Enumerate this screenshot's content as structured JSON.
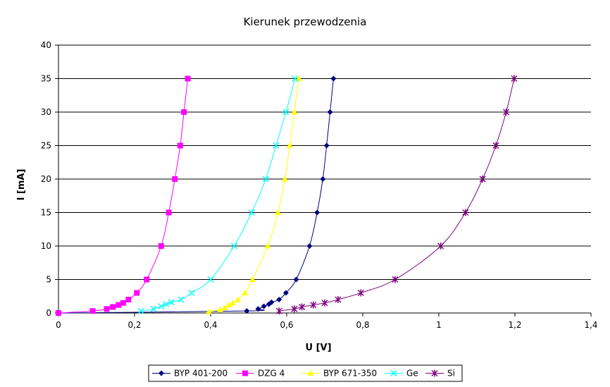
{
  "chart_data": {
    "type": "scatter",
    "title": "Kierunek przewodzenia",
    "xlabel": "U [V]",
    "ylabel": "I [mA]",
    "xlim": [
      0,
      1.4
    ],
    "ylim": [
      0,
      40
    ],
    "xticks": [
      0,
      0.2,
      0.4,
      0.6,
      0.8,
      1,
      1.2,
      1.4
    ],
    "xtick_labels": [
      "0",
      "0,2",
      "0,4",
      "0,6",
      "0,8",
      "1",
      "1,2",
      "1,4"
    ],
    "yticks": [
      0,
      5,
      10,
      15,
      20,
      25,
      30,
      35,
      40
    ],
    "ytick_labels": [
      "0",
      "5",
      "10",
      "15",
      "20",
      "25",
      "30",
      "35",
      "40"
    ],
    "grid": "horizontal",
    "legend_position": "bottom",
    "series": [
      {
        "name": "BYP 401-200",
        "color": "#000080",
        "marker": "diamond",
        "x": [
          0,
          0.495,
          0.525,
          0.54,
          0.553,
          0.56,
          0.58,
          0.598,
          0.625,
          0.66,
          0.68,
          0.695,
          0.705,
          0.714,
          0.723
        ],
        "y": [
          0,
          0.3,
          0.6,
          1.0,
          1.3,
          1.6,
          2.0,
          3.0,
          5.0,
          10,
          15,
          20,
          25,
          30,
          35
        ]
      },
      {
        "name": "DZG 4",
        "color": "#FF00FF",
        "marker": "square",
        "x": [
          0,
          0.09,
          0.127,
          0.143,
          0.158,
          0.17,
          0.184,
          0.206,
          0.232,
          0.27,
          0.29,
          0.306,
          0.32,
          0.33,
          0.34
        ],
        "y": [
          0,
          0.3,
          0.6,
          0.9,
          1.2,
          1.5,
          2.0,
          3.0,
          5.0,
          10,
          15,
          20,
          25,
          30,
          35
        ]
      },
      {
        "name": "BYP 671-350",
        "color": "#FFFF00",
        "marker": "triangle",
        "x": [
          0.395,
          0.425,
          0.437,
          0.448,
          0.458,
          0.472,
          0.49,
          0.51,
          0.55,
          0.577,
          0.595,
          0.608,
          0.62,
          0.632
        ],
        "y": [
          0.2,
          0.5,
          0.8,
          1.2,
          1.5,
          2.0,
          3.0,
          5.0,
          10,
          15,
          20,
          25,
          30,
          35
        ]
      },
      {
        "name": "Ge",
        "color": "#00FFFF",
        "marker": "x",
        "x": [
          0.217,
          0.25,
          0.27,
          0.283,
          0.297,
          0.322,
          0.35,
          0.4,
          0.462,
          0.508,
          0.545,
          0.572,
          0.598,
          0.622
        ],
        "y": [
          0.3,
          0.6,
          1.0,
          1.3,
          1.6,
          2.0,
          3.0,
          5.0,
          10,
          15,
          20,
          25,
          30,
          35
        ]
      },
      {
        "name": "Si",
        "color": "#800080",
        "marker": "star",
        "x": [
          0.58,
          0.62,
          0.64,
          0.67,
          0.7,
          0.735,
          0.795,
          0.885,
          1.005,
          1.07,
          1.115,
          1.15,
          1.177,
          1.198
        ],
        "y": [
          0.3,
          0.6,
          0.9,
          1.2,
          1.5,
          2.0,
          3.0,
          5.0,
          10,
          15,
          20,
          25,
          30,
          35
        ]
      }
    ]
  }
}
